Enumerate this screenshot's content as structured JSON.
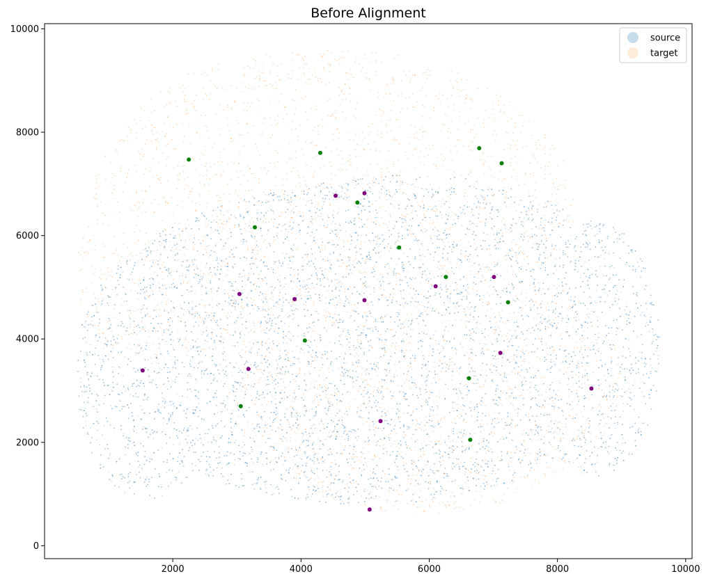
{
  "chart_data": {
    "type": "scatter",
    "title": "Before Alignment",
    "xlabel": "",
    "ylabel": "",
    "xlim": [
      0,
      10100
    ],
    "ylim": [
      -250,
      10100
    ],
    "xticks": [
      2000,
      4000,
      6000,
      8000,
      10000
    ],
    "yticks": [
      0,
      2000,
      4000,
      6000,
      8000,
      10000
    ],
    "grid": false,
    "legend_position": "top-right",
    "series": [
      {
        "name": "source",
        "color": "#1f77b4",
        "marker_alpha": 0.25,
        "description_shape": "dense cloud of cells covering coronal brain section, x approx 500-9600, y approx 250-7200"
      },
      {
        "name": "target",
        "color": "#ff7f0e",
        "marker_alpha": 0.15,
        "description_shape": "dense cloud of cells covering coronal brain section shifted upward, x approx 450-9000, y approx 300-9600"
      }
    ],
    "landmarks_green": {
      "color": "#008000",
      "x": [
        2250,
        4300,
        6780,
        7130,
        4880,
        3280,
        5530,
        6260,
        7230,
        4060,
        6620,
        3060,
        6640
      ],
      "y": [
        7470,
        7600,
        7690,
        7400,
        6640,
        6160,
        5770,
        5200,
        4710,
        3970,
        3240,
        2700,
        2050
      ]
    },
    "landmarks_purple": {
      "color": "#800080",
      "x": [
        4990,
        4540,
        7010,
        6100,
        3040,
        3900,
        4990,
        7110,
        1530,
        3180,
        8530,
        5240,
        5070
      ],
      "y": [
        6820,
        6770,
        5200,
        5020,
        4870,
        4770,
        4750,
        3730,
        3390,
        3420,
        3040,
        2410,
        700
      ]
    }
  }
}
